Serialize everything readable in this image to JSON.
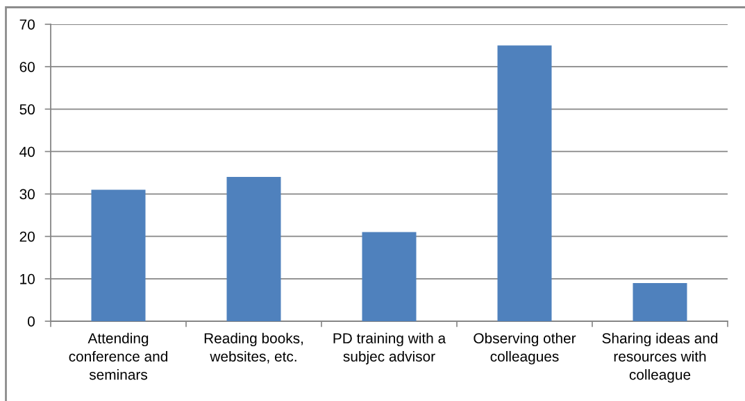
{
  "chart_data": {
    "type": "bar",
    "categories": [
      "Attending\nconference and\nseminars",
      "Reading books,\nwebsites, etc.",
      "PD training with a\nsubjec advisor",
      "Observing other\ncolleagues",
      "Sharing ideas and\nresources with\ncolleague"
    ],
    "values": [
      31,
      34,
      21,
      65,
      9
    ],
    "color": "#4f81bd",
    "ylim": [
      0,
      70
    ],
    "yticks": [
      0,
      10,
      20,
      30,
      40,
      50,
      60,
      70
    ],
    "grid": "y"
  }
}
